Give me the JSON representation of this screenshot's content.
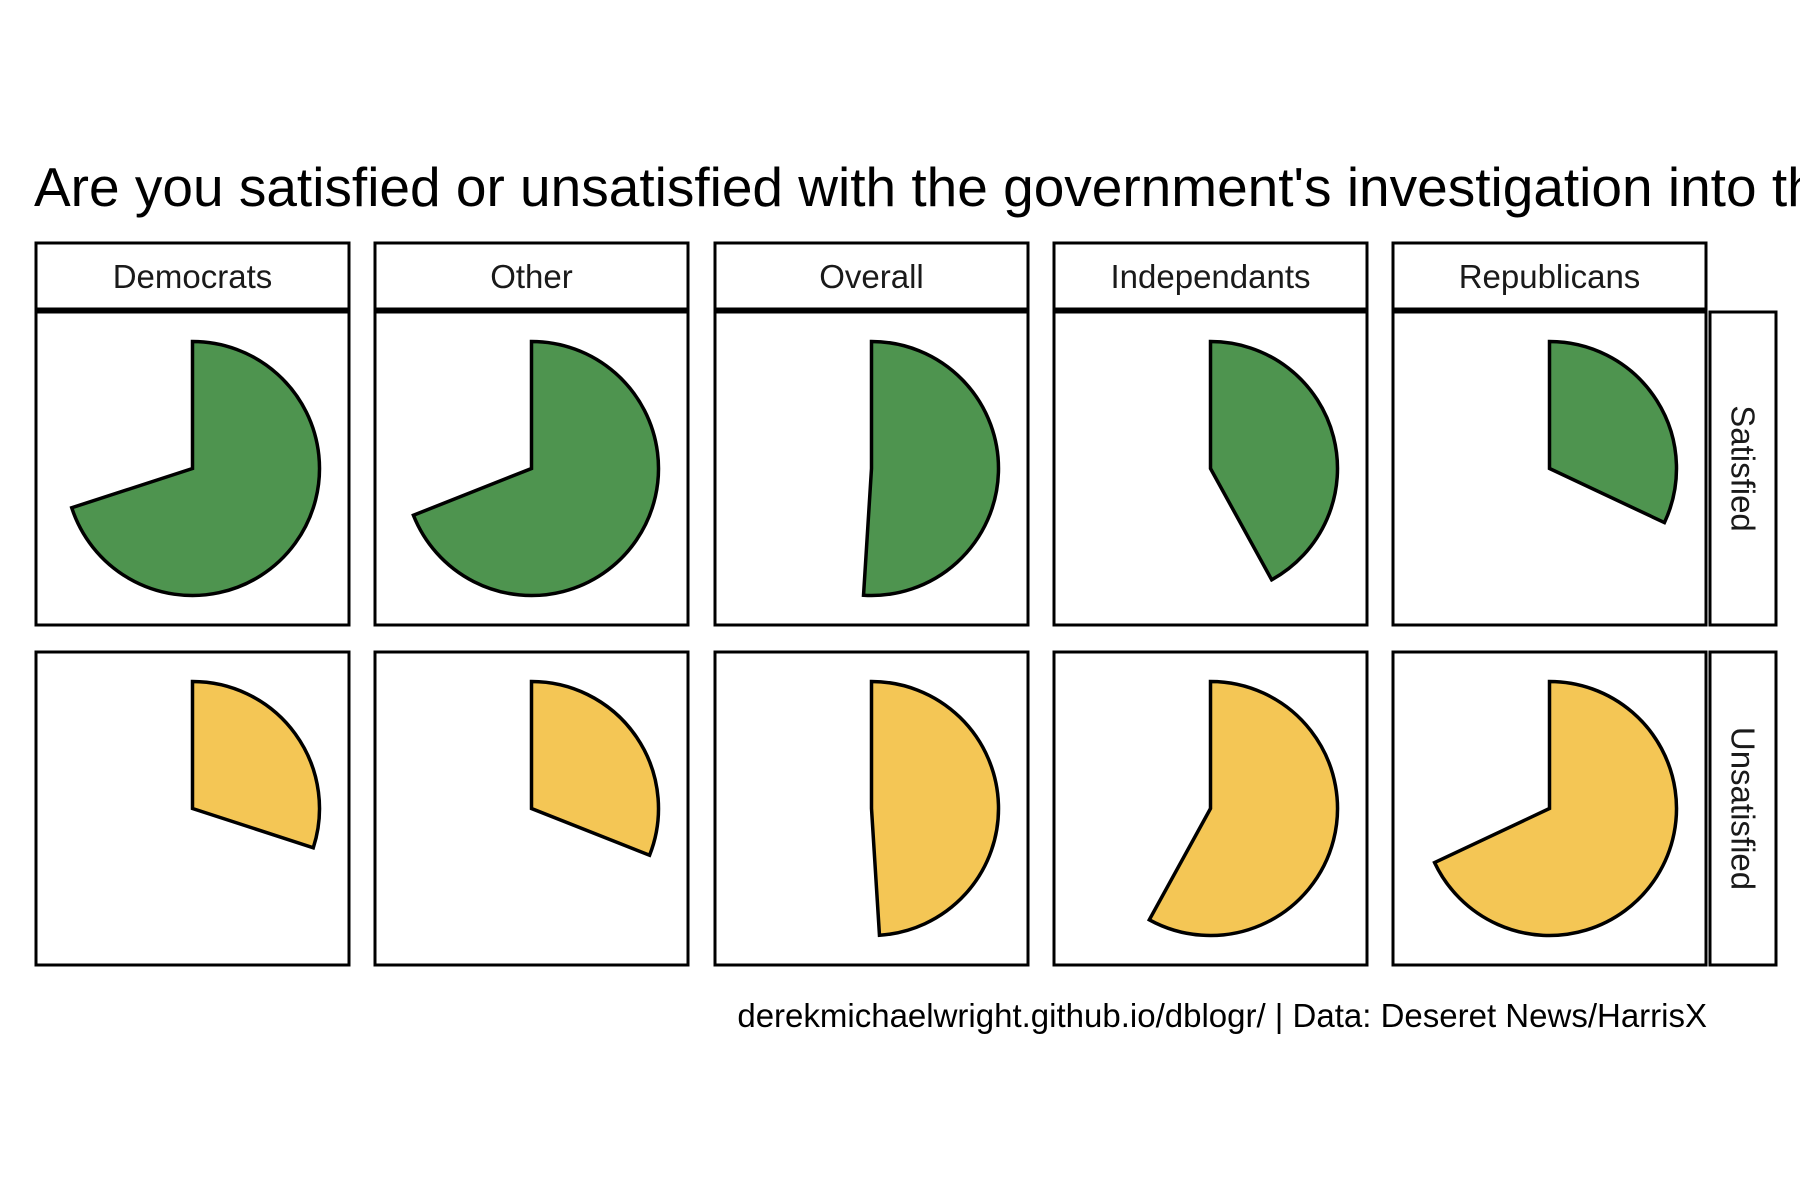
{
  "chart_data": {
    "type": "pie",
    "title": "Are you satisfied or unsatisfied with the government's investigation into th",
    "columns": [
      "Democrats",
      "Other",
      "Overall",
      "Independants",
      "Republicans"
    ],
    "rows": [
      "Satisfied",
      "Unsatisfied"
    ],
    "series": [
      {
        "name": "Satisfied",
        "color": "#4e944f",
        "values": [
          70,
          69,
          51,
          42,
          32
        ]
      },
      {
        "name": "Unsatisfied",
        "color": "#f4c655",
        "values": [
          30,
          31,
          49,
          58,
          68
        ]
      }
    ],
    "unit": "%",
    "caption": "derekmichaelwright.github.io/dblogr/ | Data: Deseret News/HarrisX"
  }
}
